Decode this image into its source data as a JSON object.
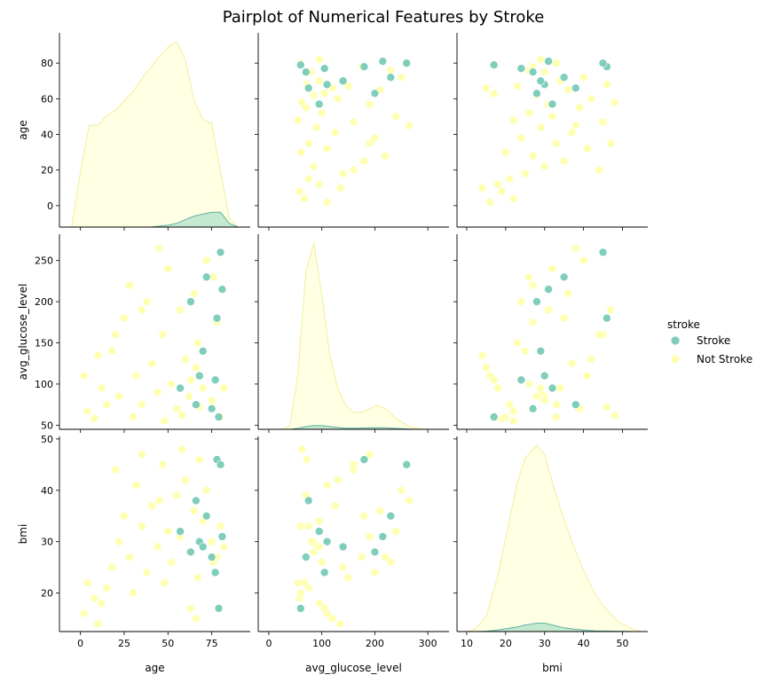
{
  "title": "Pairplot of Numerical Features by Stroke",
  "colors": {
    "Stroke": "#7fcdbb",
    "Not Stroke": "#ffffb2",
    "Stroke_edge": "#5fb3a3",
    "Not Stroke_edge": "#f2ee9a"
  },
  "legend": {
    "title": "stroke",
    "placement": "right",
    "items": [
      "Stroke",
      "Not Stroke"
    ]
  },
  "chart_data": {
    "type": "scatter",
    "subtype": "pairplot",
    "hue": "stroke",
    "variables": [
      {
        "name": "age",
        "label": "age",
        "lim": [
          -12,
          97
        ],
        "ticks": [
          0,
          20,
          40,
          60,
          80
        ],
        "xticks": [
          0,
          25,
          50,
          75
        ]
      },
      {
        "name": "avg_glucose_level",
        "label": "avg_glucose_level",
        "lim": [
          45,
          282
        ],
        "ticks": [
          50,
          100,
          150,
          200,
          250
        ],
        "xlim": [
          -20,
          340
        ],
        "xticks": [
          0,
          100,
          200,
          300
        ]
      },
      {
        "name": "bmi",
        "label": "bmi",
        "lim": [
          12.5,
          50.5
        ],
        "ticks": [
          20,
          30,
          40,
          50
        ],
        "xlim": [
          7.5,
          56.5
        ],
        "xticks": [
          10,
          20,
          30,
          40,
          50
        ]
      }
    ],
    "diagonal": "kde",
    "kde": {
      "age": {
        "x": [
          -5,
          0,
          5,
          10,
          15,
          20,
          25,
          30,
          35,
          40,
          45,
          50,
          55,
          60,
          65,
          70,
          75,
          80,
          85,
          90
        ],
        "Not Stroke": [
          0.0,
          0.3,
          0.55,
          0.55,
          0.6,
          0.63,
          0.68,
          0.73,
          0.8,
          0.86,
          0.92,
          0.97,
          1.0,
          0.9,
          0.68,
          0.58,
          0.56,
          0.3,
          0.05,
          0.0
        ],
        "Stroke": [
          0,
          0,
          0,
          0,
          0,
          0,
          0,
          0,
          0,
          0,
          0.005,
          0.01,
          0.02,
          0.04,
          0.06,
          0.07,
          0.08,
          0.08,
          0.02,
          0
        ]
      },
      "avg_glucose_level": {
        "x": [
          25,
          40,
          55,
          70,
          85,
          100,
          115,
          130,
          145,
          160,
          175,
          190,
          205,
          220,
          235,
          250,
          265,
          280,
          300,
          320
        ],
        "Not Stroke": [
          0.0,
          0.02,
          0.3,
          0.85,
          1.0,
          0.72,
          0.4,
          0.22,
          0.13,
          0.09,
          0.09,
          0.11,
          0.13,
          0.11,
          0.07,
          0.04,
          0.015,
          0.005,
          0.0,
          0.0
        ],
        "Stroke": [
          0.0,
          0.0,
          0.005,
          0.015,
          0.02,
          0.02,
          0.015,
          0.01,
          0.006,
          0.006,
          0.007,
          0.008,
          0.009,
          0.008,
          0.006,
          0.004,
          0.002,
          0.0,
          0.0,
          0.0
        ]
      },
      "bmi": {
        "x": [
          10,
          12,
          15,
          18,
          20,
          23,
          25,
          28,
          30,
          32,
          35,
          38,
          40,
          43,
          45,
          48,
          50,
          53,
          55
        ],
        "Not Stroke": [
          0.0,
          0.01,
          0.08,
          0.3,
          0.5,
          0.8,
          0.93,
          1.0,
          0.95,
          0.8,
          0.6,
          0.43,
          0.33,
          0.2,
          0.14,
          0.07,
          0.04,
          0.01,
          0.0
        ],
        "Stroke": [
          0.0,
          0.0,
          0.002,
          0.008,
          0.015,
          0.025,
          0.035,
          0.045,
          0.045,
          0.035,
          0.02,
          0.012,
          0.008,
          0.004,
          0.003,
          0.002,
          0.001,
          0.0,
          0.0
        ]
      }
    },
    "points": {
      "Not Stroke": [
        [
          4,
          67,
          22
        ],
        [
          12,
          95,
          18
        ],
        [
          18,
          140,
          25
        ],
        [
          22,
          85,
          30
        ],
        [
          25,
          180,
          35
        ],
        [
          28,
          220,
          27
        ],
        [
          32,
          110,
          41
        ],
        [
          35,
          75,
          33
        ],
        [
          38,
          200,
          24
        ],
        [
          41,
          125,
          37
        ],
        [
          44,
          90,
          29
        ],
        [
          47,
          160,
          45
        ],
        [
          50,
          240,
          32
        ],
        [
          52,
          100,
          26
        ],
        [
          55,
          70,
          39
        ],
        [
          57,
          190,
          31
        ],
        [
          60,
          130,
          42
        ],
        [
          62,
          85,
          28
        ],
        [
          65,
          210,
          36
        ],
        [
          67,
          150,
          23
        ],
        [
          70,
          95,
          34
        ],
        [
          72,
          250,
          40
        ],
        [
          75,
          80,
          30
        ],
        [
          78,
          175,
          27
        ],
        [
          80,
          60,
          33
        ],
        [
          2,
          110,
          16
        ],
        [
          8,
          58,
          19
        ],
        [
          15,
          75,
          21
        ],
        [
          20,
          160,
          44
        ],
        [
          30,
          60,
          20
        ],
        [
          45,
          265,
          38
        ],
        [
          58,
          62,
          48
        ],
        [
          63,
          105,
          17
        ],
        [
          68,
          72,
          46
        ],
        [
          76,
          230,
          26
        ],
        [
          10,
          135,
          14
        ],
        [
          35,
          190,
          47
        ],
        [
          48,
          55,
          22
        ],
        [
          66,
          120,
          15
        ],
        [
          82,
          95,
          29
        ]
      ],
      "Stroke": [
        [
          57,
          95,
          32
        ],
        [
          63,
          200,
          28
        ],
        [
          68,
          110,
          30
        ],
        [
          72,
          230,
          35
        ],
        [
          75,
          70,
          27
        ],
        [
          78,
          180,
          46
        ],
        [
          79,
          60,
          17
        ],
        [
          80,
          260,
          45
        ],
        [
          66,
          75,
          38
        ],
        [
          81,
          215,
          31
        ],
        [
          70,
          140,
          29
        ],
        [
          77,
          105,
          24
        ]
      ]
    }
  }
}
